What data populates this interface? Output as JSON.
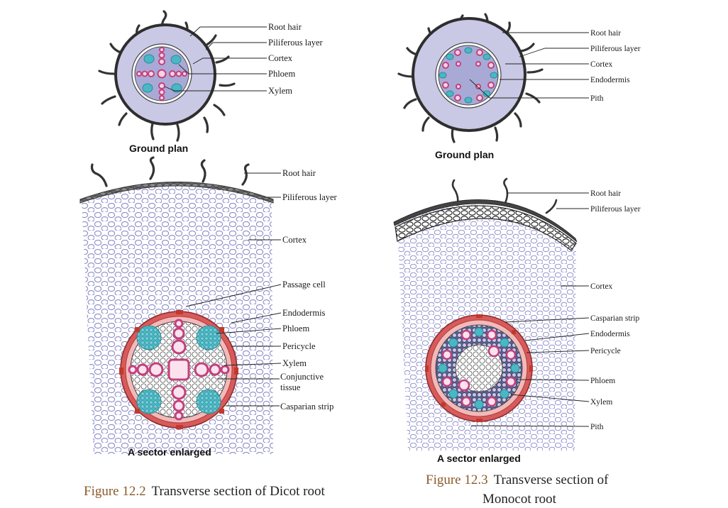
{
  "dicot": {
    "ground_plan": {
      "title": "Ground plan",
      "labels": [
        "Root hair",
        "Piliferous layer",
        "Cortex",
        "Phloem",
        "Xylem"
      ]
    },
    "sector": {
      "title": "A sector enlarged",
      "labels": [
        "Root hair",
        "Piliferous layer",
        "Cortex",
        "Passage cell",
        "Endodermis",
        "Phloem",
        "Pericycle",
        "Xylem",
        "Conjunctive",
        "tissue",
        "Casparian strip"
      ]
    },
    "figure_number": "Figure 12.2",
    "figure_title": "Transverse section of Dicot root"
  },
  "monocot": {
    "ground_plan": {
      "title": "Ground plan",
      "labels": [
        "Root hair",
        "Piliferous layer",
        "Cortex",
        "Endodermis",
        "Pith"
      ]
    },
    "sector": {
      "title": "A sector enlarged",
      "labels": [
        "Root hair",
        "Piliferous layer",
        "Cortex",
        "Casparian strip",
        "Endodermis",
        "Pericycle",
        "Phloem",
        "Xylem",
        "Pith"
      ]
    },
    "figure_number": "Figure 12.3",
    "figure_title_line1": "Transverse section of",
    "figure_title_line2": "Monocot root"
  },
  "colors": {
    "cortex": "#c9c9e6",
    "stele": "#a9a9d6",
    "cell_outline": "#8c8cc8",
    "xylem": "#c2407e",
    "phloem": "#49b8c4",
    "endodermis": "#d85a5a",
    "pericycle": "#f2b9b9",
    "root_hair": "#333333"
  }
}
